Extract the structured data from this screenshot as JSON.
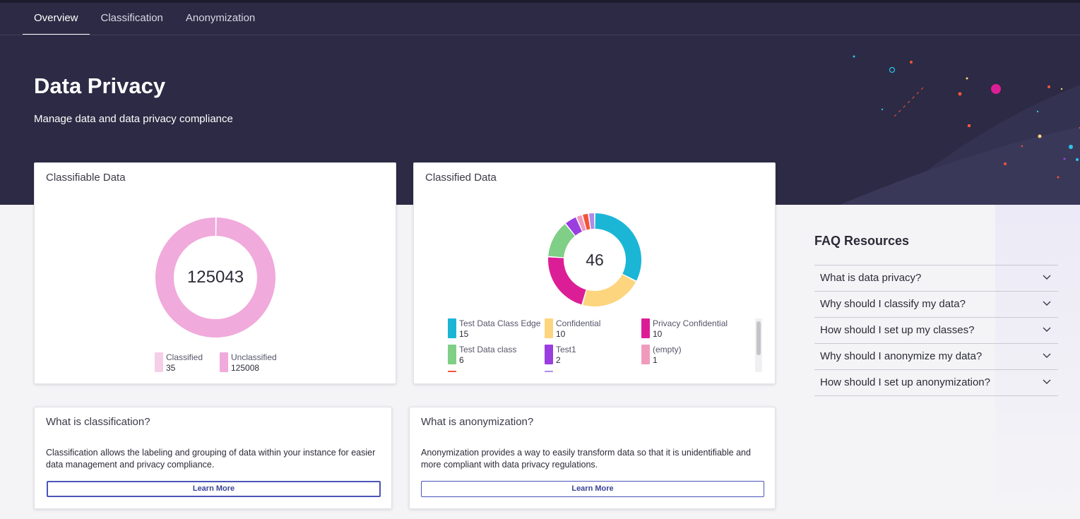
{
  "tabs": [
    {
      "label": "Overview",
      "active": true
    },
    {
      "label": "Classification",
      "active": false
    },
    {
      "label": "Anonymization",
      "active": false
    }
  ],
  "header": {
    "title": "Data Privacy",
    "subtitle": "Manage data and data privacy compliance"
  },
  "classifiable_card": {
    "title": "Classifiable Data",
    "total": "125043",
    "legend": [
      {
        "label": "Classified",
        "value": "35",
        "color": "#f5cfe7"
      },
      {
        "label": "Unclassified",
        "value": "125008",
        "color": "#f0aadb"
      }
    ]
  },
  "classified_card": {
    "title": "Classified Data",
    "total": "46",
    "legend": [
      {
        "label": "Test Data Class Edge",
        "value": "15",
        "color": "#1bb6d6"
      },
      {
        "label": "Confidential",
        "value": "10",
        "color": "#fcd57e"
      },
      {
        "label": "Privacy Confidential",
        "value": "10",
        "color": "#dc1e96"
      },
      {
        "label": "Test Data class",
        "value": "6",
        "color": "#7fcf86"
      },
      {
        "label": "Test1",
        "value": "2",
        "color": "#9b3ee0"
      },
      {
        "label": "(empty)",
        "value": "1",
        "color": "#f09bbd"
      },
      {
        "label": "",
        "value": "1",
        "color": "#f0553a"
      },
      {
        "label": "",
        "value": "1",
        "color": "#b08be6"
      }
    ]
  },
  "chart_data": {
    "type": "pie",
    "charts": [
      {
        "title": "Classifiable Data",
        "center_label": "125043",
        "categories": [
          "Classified",
          "Unclassified"
        ],
        "values": [
          35,
          125008
        ],
        "colors": [
          "#f5cfe7",
          "#f0aadb"
        ]
      },
      {
        "title": "Classified Data",
        "center_label": "46",
        "categories": [
          "Test Data Class Edge",
          "Confidential",
          "Privacy Confidential",
          "Test Data class",
          "Test1",
          "(empty)",
          "",
          ""
        ],
        "values": [
          15,
          10,
          10,
          6,
          2,
          1,
          1,
          1
        ],
        "colors": [
          "#1bb6d6",
          "#fcd57e",
          "#dc1e96",
          "#7fcf86",
          "#9b3ee0",
          "#f09bbd",
          "#f0553a",
          "#b08be6"
        ]
      }
    ],
    "legend_position": "bottom"
  },
  "classification_info": {
    "title": "What is classification?",
    "text": "Classification allows the labeling and grouping of data within your instance for easier data management and privacy compliance.",
    "button_label": "Learn More"
  },
  "anonymization_info": {
    "title": "What is anonymization?",
    "text": "Anonymization provides a way to easily transform data so that it is unidentifiable and more compliant with data privacy regulations.",
    "button_label": "Learn More"
  },
  "faq": {
    "title": "FAQ Resources",
    "items": [
      "What is data privacy?",
      "Why should I classify my data?",
      "How should I set up my classes?",
      "Why should I anonymize my data?",
      "How should I set up anonymization?"
    ],
    "chevron_icon": "chevron-down-icon"
  }
}
